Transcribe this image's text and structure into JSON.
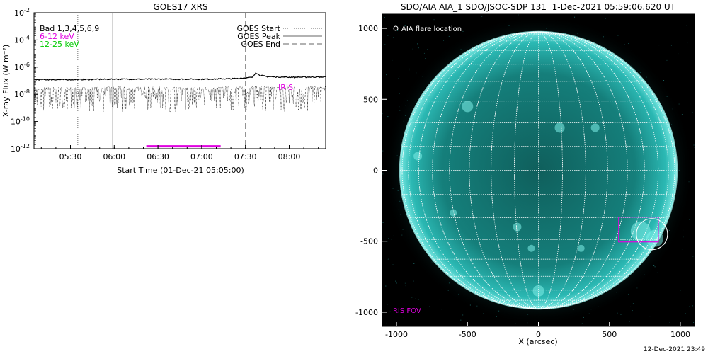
{
  "left_chart": {
    "title": "GOES17 XRS",
    "ylabel": "X-ray Flux (W m⁻²)",
    "xlabel": "Start Time (01-Dec-21 05:05:00)",
    "legend_left": [
      "Bad 1,3,4,5,6,9",
      "6-12 keV",
      "12-25 keV"
    ],
    "legend_right": [
      "GOES Start",
      "GOES Peak",
      "GOES End"
    ],
    "iris_label": "IRIS",
    "colors": {
      "low_channel": "#e000e0",
      "high_channel": "#00cc00",
      "iris": "#e000e0",
      "axis": "#000000"
    }
  },
  "right_chart": {
    "title": "SDO/AIA AIA_1 SDO/JSOC-SDP 131  1-Dec-2021 05:59:06.620 UT",
    "xlabel": "X (arcsec)",
    "flare_legend": "AIA flare location",
    "iris_fov_label": "IRIS FOV",
    "colors": {
      "sun": "#1fb3b0",
      "background": "#000000",
      "grid": "#ffffff",
      "iris": "#e000e0"
    }
  },
  "footer": {
    "timestamp": "12-Dec-2021 23:49"
  },
  "chart_data": [
    {
      "type": "line",
      "title": "GOES17 XRS",
      "xlabel": "Start Time (01-Dec-21 05:05:00)",
      "ylabel": "X-ray Flux (W m⁻²)",
      "ylog": true,
      "xlim": [
        "05:05",
        "08:25"
      ],
      "ylim": [
        1e-12,
        0.01
      ],
      "x_ticks": [
        "05:30",
        "06:00",
        "06:30",
        "07:00",
        "07:30",
        "08:00"
      ],
      "y_ticks": [
        {
          "v": 1e-12,
          "t": "10",
          "e": "-12"
        },
        {
          "v": 1e-10,
          "t": "10",
          "e": "-10"
        },
        {
          "v": 1e-08,
          "t": "10",
          "e": "-8"
        },
        {
          "v": 1e-06,
          "t": "10",
          "e": "-6"
        },
        {
          "v": 0.0001,
          "t": "10",
          "e": "-4"
        },
        {
          "v": 0.01,
          "t": "10",
          "e": "-2"
        }
      ],
      "series": [
        {
          "name": "6-12 keV",
          "color": "#000000",
          "x": [
            "05:05",
            "05:30",
            "06:00",
            "06:30",
            "07:00",
            "07:20",
            "07:30",
            "07:35",
            "07:37",
            "07:40",
            "07:45",
            "08:00",
            "08:25"
          ],
          "values": [
            1.2e-07,
            1.2e-07,
            1.3e-07,
            1.3e-07,
            1.3e-07,
            1.4e-07,
            1.6e-07,
            1.8e-07,
            4e-07,
            2.5e-07,
            2e-07,
            1.8e-07,
            1.9e-07
          ]
        },
        {
          "name": "12-25 keV",
          "color": "#000000",
          "x": [
            "05:05",
            "05:30",
            "06:00",
            "06:30",
            "07:00",
            "07:30",
            "08:00",
            "08:25"
          ],
          "values": [
            2e-08,
            2e-08,
            2.2e-08,
            2e-08,
            2e-08,
            2.5e-08,
            2.2e-08,
            2.5e-08
          ]
        }
      ],
      "markers": {
        "goes_start": "05:35",
        "goes_peak": "05:59",
        "goes_end": "07:30"
      },
      "iris_interval": [
        "06:22",
        "07:13"
      ],
      "iris_level": 1.5e-12
    },
    {
      "type": "scatter",
      "title": "SDO/AIA AIA_1 SDO/JSOC-SDP 131  1-Dec-2021 05:59:06.620 UT",
      "xlabel": "X (arcsec)",
      "ylabel": "",
      "xlim": [
        -1100,
        1100
      ],
      "ylim": [
        -1100,
        1100
      ],
      "x_ticks": [
        -1000,
        -500,
        0,
        500,
        1000
      ],
      "y_ticks": [
        -1000,
        -500,
        0,
        500,
        1000
      ],
      "solar_radius": 975,
      "flare_location": {
        "x": 800,
        "y": -450
      },
      "iris_fov": {
        "x0": 565,
        "x1": 845,
        "y0": -505,
        "y1": -330
      }
    }
  ]
}
